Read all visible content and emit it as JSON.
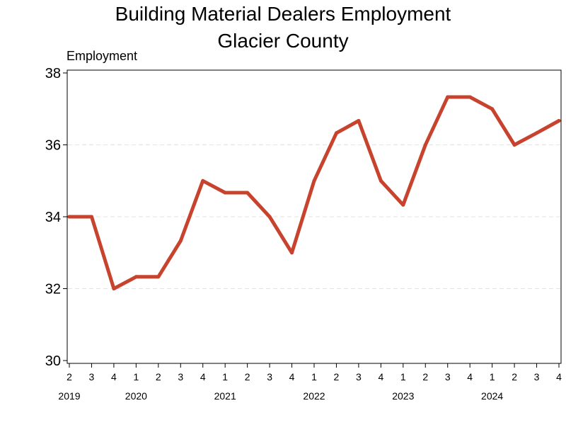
{
  "chart_data": {
    "type": "line",
    "title_line1": "Building Material Dealers Employment",
    "title_line2": "Glacier County",
    "ylabel": "Employment",
    "xlabel": "",
    "ylim": [
      30,
      38
    ],
    "yticks": [
      "30",
      "32",
      "34",
      "36",
      "38"
    ],
    "grid": "horizontal dashed",
    "quarters": [
      "2",
      "3",
      "4",
      "1",
      "2",
      "3",
      "4",
      "1",
      "2",
      "3",
      "4",
      "1",
      "2",
      "3",
      "4",
      "1",
      "2",
      "3",
      "4",
      "1",
      "2",
      "3",
      "4"
    ],
    "years": [
      {
        "label": "2019",
        "index": 0
      },
      {
        "label": "2020",
        "index": 3
      },
      {
        "label": "2021",
        "index": 7
      },
      {
        "label": "2022",
        "index": 11
      },
      {
        "label": "2023",
        "index": 15
      },
      {
        "label": "2024",
        "index": 19
      }
    ],
    "series": [
      {
        "color": "#c8432e",
        "x": [
          "2019 Q2",
          "2019 Q3",
          "2019 Q4",
          "2020 Q1",
          "2020 Q2",
          "2020 Q3",
          "2020 Q4",
          "2021 Q1",
          "2021 Q2",
          "2021 Q3",
          "2021 Q4",
          "2022 Q1",
          "2022 Q2",
          "2022 Q3",
          "2022 Q4",
          "2023 Q1",
          "2023 Q2",
          "2023 Q3",
          "2023 Q4",
          "2024 Q1",
          "2024 Q2",
          "2024 Q3",
          "2024 Q4"
        ],
        "values": [
          34.0,
          34.0,
          32.0,
          32.33,
          32.33,
          33.33,
          35.0,
          34.67,
          34.67,
          34.0,
          33.0,
          35.0,
          36.33,
          36.67,
          35.0,
          34.33,
          36.0,
          37.33,
          37.33,
          37.0,
          36.0,
          36.33,
          36.67
        ]
      }
    ]
  }
}
